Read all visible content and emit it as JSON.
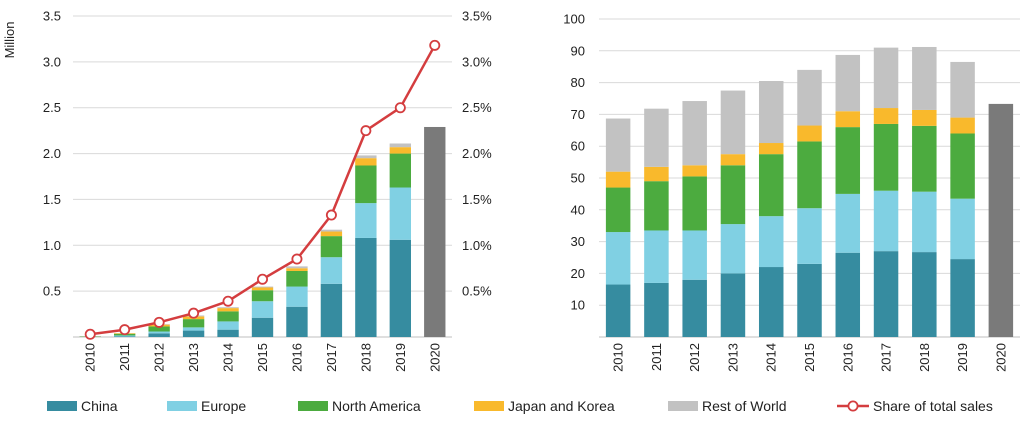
{
  "chart_data": [
    {
      "type": "bar",
      "subtype": "stacked",
      "title": "",
      "ylabel": "Million",
      "ylim": [
        0,
        3.5
      ],
      "y_ticks": [
        "0.5",
        "1.0",
        "1.5",
        "2.0",
        "2.5",
        "3.0",
        "3.5"
      ],
      "y2lim": [
        0,
        0.035
      ],
      "y2_ticks": [
        "0.5%",
        "1.0%",
        "1.5%",
        "2.0%",
        "2.5%",
        "3.0%",
        "3.5%"
      ],
      "categories": [
        "2010",
        "2011",
        "2012",
        "2013",
        "2014",
        "2015",
        "2016",
        "2017",
        "2018",
        "2019",
        "2020"
      ],
      "series": [
        {
          "name": "China",
          "color": "#368CA0",
          "values": [
            0.002,
            0.007,
            0.04,
            0.07,
            0.08,
            0.21,
            0.33,
            0.58,
            1.08,
            1.06,
            null
          ]
        },
        {
          "name": "Europe",
          "color": "#80D0E3",
          "values": [
            0.002,
            0.01,
            0.02,
            0.035,
            0.09,
            0.18,
            0.22,
            0.29,
            0.38,
            0.57,
            null
          ]
        },
        {
          "name": "North America",
          "color": "#4CAB3F",
          "values": [
            0.003,
            0.018,
            0.055,
            0.09,
            0.11,
            0.12,
            0.17,
            0.23,
            0.41,
            0.37,
            null
          ]
        },
        {
          "name": "Japan and Korea",
          "color": "#F9B92C",
          "values": [
            0.002,
            0.007,
            0.02,
            0.03,
            0.035,
            0.03,
            0.03,
            0.05,
            0.08,
            0.07,
            null
          ]
        },
        {
          "name": "Rest of World",
          "color": "#C2C2C2",
          "values": [
            0.001,
            0.001,
            0.005,
            0.01,
            0.01,
            0.01,
            0.02,
            0.02,
            0.03,
            0.04,
            null
          ]
        }
      ],
      "total_series": {
        "name": "2020 total",
        "color": "#7A7A7A",
        "values": [
          null,
          null,
          null,
          null,
          null,
          null,
          null,
          null,
          null,
          null,
          2.29
        ]
      },
      "line_series": {
        "name": "Share of total sales",
        "color": "#D43D3F",
        "axis": "secondary",
        "values": [
          0.0003,
          0.0008,
          0.0016,
          0.0026,
          0.0039,
          0.0063,
          0.0085,
          0.0133,
          0.0225,
          0.025,
          0.0318
        ]
      }
    },
    {
      "type": "bar",
      "subtype": "stacked",
      "title": "",
      "ylabel": "",
      "ylim": [
        0,
        100
      ],
      "y_ticks": [
        "10",
        "20",
        "30",
        "40",
        "50",
        "60",
        "70",
        "80",
        "90",
        "100"
      ],
      "categories": [
        "2010",
        "2011",
        "2012",
        "2013",
        "2014",
        "2015",
        "2016",
        "2017",
        "2018",
        "2019",
        "2020"
      ],
      "series": [
        {
          "name": "China",
          "color": "#368CA0",
          "values": [
            16.5,
            17,
            18,
            20,
            22,
            23,
            26.5,
            27,
            26.7,
            24.5,
            null
          ]
        },
        {
          "name": "Europe",
          "color": "#80D0E3",
          "values": [
            16.5,
            16.5,
            15.5,
            15.5,
            16,
            17.5,
            18.5,
            19,
            19,
            19,
            null
          ]
        },
        {
          "name": "North America",
          "color": "#4CAB3F",
          "values": [
            14,
            15.5,
            17,
            18.5,
            19.5,
            21,
            21,
            21,
            20.7,
            20.5,
            null
          ]
        },
        {
          "name": "Japan and Korea",
          "color": "#F9B92C",
          "values": [
            5,
            4.5,
            3.5,
            3.5,
            3.5,
            5,
            5,
            5,
            5,
            5,
            null
          ]
        },
        {
          "name": "Rest of World",
          "color": "#C2C2C2",
          "values": [
            16.7,
            18.3,
            20.2,
            20,
            19.5,
            17.5,
            17.7,
            19,
            19.8,
            17.5,
            null
          ]
        }
      ],
      "total_series": {
        "name": "2020 total",
        "color": "#7A7A7A",
        "values": [
          null,
          null,
          null,
          null,
          null,
          null,
          null,
          null,
          null,
          null,
          73.3
        ]
      }
    }
  ],
  "legend": [
    {
      "label": "China",
      "color": "#368CA0",
      "kind": "box"
    },
    {
      "label": "Europe",
      "color": "#80D0E3",
      "kind": "box"
    },
    {
      "label": "North America",
      "color": "#4CAB3F",
      "kind": "box"
    },
    {
      "label": "Japan and Korea",
      "color": "#F9B92C",
      "kind": "box"
    },
    {
      "label": "Rest of World",
      "color": "#C2C2C2",
      "kind": "box"
    },
    {
      "label": "Share of total sales",
      "color": "#D43D3F",
      "kind": "line-marker"
    }
  ]
}
